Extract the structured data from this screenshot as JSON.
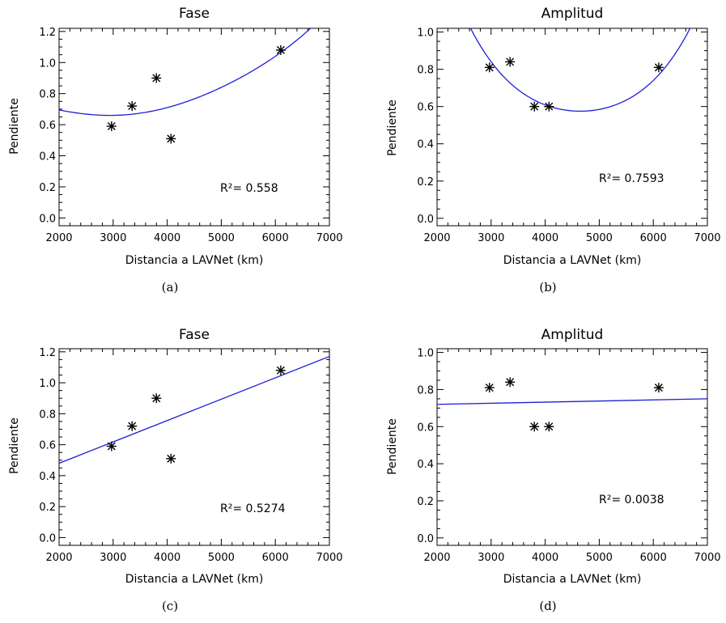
{
  "chart_data": [
    {
      "type": "scatter",
      "panel": "a",
      "title": "Fase",
      "xlabel": "Distancia a LAVNet (km)",
      "ylabel": "Pendiente",
      "xlim": [
        2000,
        7000
      ],
      "ylim": [
        -0.05,
        1.22
      ],
      "xticks": [
        2000,
        3000,
        4000,
        5000,
        6000,
        7000
      ],
      "yticks": [
        "0.0",
        "0.2",
        "0.4",
        "0.6",
        "0.8",
        "1.0",
        "1.2"
      ],
      "points": [
        {
          "x": 2970,
          "y": 0.59
        },
        {
          "x": 3350,
          "y": 0.72
        },
        {
          "x": 3800,
          "y": 0.9
        },
        {
          "x": 4070,
          "y": 0.51
        },
        {
          "x": 6100,
          "y": 1.08
        }
      ],
      "fit": {
        "kind": "quadratic",
        "through": [
          [
            2000,
            0.695
          ],
          [
            3000,
            0.66
          ],
          [
            4000,
            0.71
          ],
          [
            5000,
            0.84
          ],
          [
            6000,
            1.04
          ],
          [
            6650,
            1.22
          ]
        ]
      },
      "r2_label": "R²=  0.558",
      "caption": "(a)"
    },
    {
      "type": "scatter",
      "panel": "b",
      "title": "Amplitud",
      "xlabel": "Distancia a LAVNet (km)",
      "ylabel": "Pendiente",
      "xlim": [
        2000,
        7000
      ],
      "ylim": [
        -0.04,
        1.02
      ],
      "xticks": [
        2000,
        3000,
        4000,
        5000,
        6000,
        7000
      ],
      "yticks": [
        "0.0",
        "0.2",
        "0.4",
        "0.6",
        "0.8",
        "1.0"
      ],
      "points": [
        {
          "x": 2970,
          "y": 0.81
        },
        {
          "x": 3350,
          "y": 0.84
        },
        {
          "x": 3800,
          "y": 0.6
        },
        {
          "x": 4070,
          "y": 0.6
        },
        {
          "x": 6100,
          "y": 0.81
        }
      ],
      "fit": {
        "kind": "quadratic",
        "through": [
          [
            2620,
            1.02
          ],
          [
            3500,
            0.69
          ],
          [
            4650,
            0.575
          ],
          [
            5800,
            0.69
          ],
          [
            6680,
            1.02
          ]
        ]
      },
      "r2_label": "R²=  0.7593",
      "caption": "(b)"
    },
    {
      "type": "scatter",
      "panel": "c",
      "title": "Fase",
      "xlabel": "Distancia a LAVNet (km)",
      "ylabel": "Pendiente",
      "xlim": [
        2000,
        7000
      ],
      "ylim": [
        -0.05,
        1.22
      ],
      "xticks": [
        2000,
        3000,
        4000,
        5000,
        6000,
        7000
      ],
      "yticks": [
        "0.0",
        "0.2",
        "0.4",
        "0.6",
        "0.8",
        "1.0",
        "1.2"
      ],
      "points": [
        {
          "x": 2970,
          "y": 0.59
        },
        {
          "x": 3350,
          "y": 0.72
        },
        {
          "x": 3800,
          "y": 0.9
        },
        {
          "x": 4070,
          "y": 0.51
        },
        {
          "x": 6100,
          "y": 1.08
        }
      ],
      "fit": {
        "kind": "linear",
        "through": [
          [
            2000,
            0.48
          ],
          [
            7000,
            1.17
          ]
        ]
      },
      "r2_label": "R²=  0.5274",
      "caption": "(c)"
    },
    {
      "type": "scatter",
      "panel": "d",
      "title": "Amplitud",
      "xlabel": "Distancia a LAVNet (km)",
      "ylabel": "Pendiente",
      "xlim": [
        2000,
        7000
      ],
      "ylim": [
        -0.04,
        1.02
      ],
      "xticks": [
        2000,
        3000,
        4000,
        5000,
        6000,
        7000
      ],
      "yticks": [
        "0.0",
        "0.2",
        "0.4",
        "0.6",
        "0.8",
        "1.0"
      ],
      "points": [
        {
          "x": 2970,
          "y": 0.81
        },
        {
          "x": 3350,
          "y": 0.84
        },
        {
          "x": 3800,
          "y": 0.6
        },
        {
          "x": 4070,
          "y": 0.6
        },
        {
          "x": 6100,
          "y": 0.81
        }
      ],
      "fit": {
        "kind": "linear",
        "through": [
          [
            2000,
            0.72
          ],
          [
            7000,
            0.75
          ]
        ]
      },
      "r2_label": "R²=  0.0038",
      "caption": "(d)"
    }
  ]
}
